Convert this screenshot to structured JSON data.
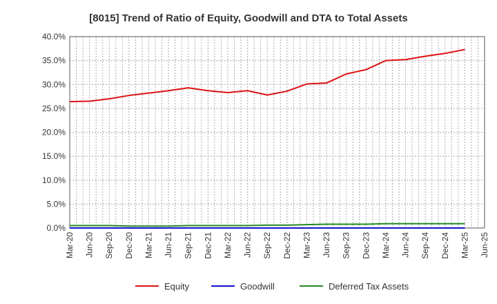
{
  "chart_data": {
    "type": "line",
    "title": "[8015]  Trend of Ratio of Equity, Goodwill and DTA to Total Assets",
    "xlabel": "",
    "ylabel": "",
    "ylim": [
      0,
      40
    ],
    "yticks": [
      "0.0%",
      "5.0%",
      "10.0%",
      "15.0%",
      "20.0%",
      "25.0%",
      "30.0%",
      "35.0%",
      "40.0%"
    ],
    "x": [
      "Mar-20",
      "Jun-20",
      "Sep-20",
      "Dec-20",
      "Mar-21",
      "Jun-21",
      "Sep-21",
      "Dec-21",
      "Mar-22",
      "Jun-22",
      "Sep-22",
      "Dec-22",
      "Mar-23",
      "Jun-23",
      "Sep-23",
      "Dec-23",
      "Mar-24",
      "Jun-24",
      "Sep-24",
      "Dec-24",
      "Mar-25",
      "Jun-25"
    ],
    "grid": true,
    "legend_position": "bottom",
    "series": [
      {
        "name": "Equity",
        "color": "#dd1111",
        "values": [
          26.4,
          26.5,
          27.0,
          27.7,
          28.2,
          28.7,
          29.3,
          28.7,
          28.3,
          28.7,
          27.8,
          28.6,
          30.1,
          30.3,
          32.2,
          33.1,
          35.0,
          35.2,
          35.9,
          36.5,
          37.3,
          null
        ]
      },
      {
        "name": "Goodwill",
        "color": "#1111cc",
        "values": [
          0,
          0,
          0,
          0,
          0,
          0,
          0,
          0,
          0,
          0,
          0,
          0,
          0,
          0,
          0,
          0,
          0,
          0,
          0,
          0,
          0,
          null
        ]
      },
      {
        "name": "Deferred Tax Assets",
        "color": "#228822",
        "values": [
          0.5,
          0.5,
          0.5,
          0.4,
          0.4,
          0.4,
          0.5,
          0.5,
          0.5,
          0.5,
          0.6,
          0.6,
          0.7,
          0.8,
          0.8,
          0.8,
          0.9,
          0.9,
          0.9,
          0.9,
          0.9,
          null
        ]
      }
    ]
  }
}
